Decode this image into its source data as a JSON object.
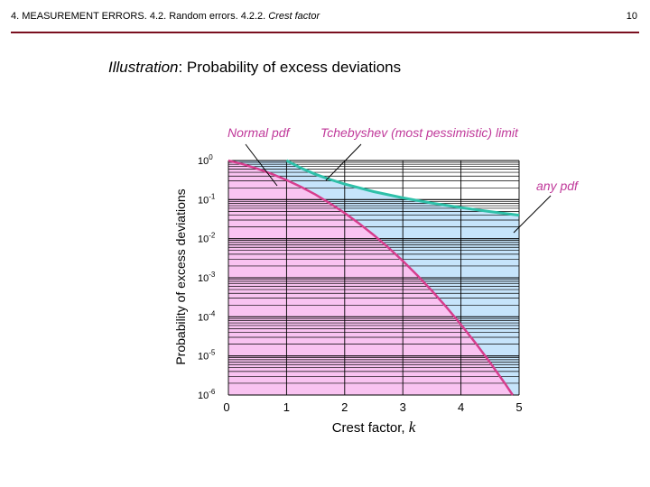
{
  "header": {
    "section": "4. MEASUREMENT ERRORS. 4.2. Random errors. 4.2.2.",
    "topic": "Crest factor",
    "page_number": "10"
  },
  "slide": {
    "title_italic": "Illustration",
    "title_rest": ":  Probability of excess deviations"
  },
  "colors": {
    "header_rule": "#7a0f1f",
    "pink_fill": "#f9c3f1",
    "blue_fill": "#c6e4fb",
    "normal_curve": "#d63e8e",
    "tchebyshev_curve": "#2fc0a9",
    "label_text": "#c0399a"
  },
  "chart_data": {
    "type": "line",
    "xlabel": "Crest factor, k",
    "xlabel_text": "Crest factor, ",
    "xlabel_var": "k",
    "ylabel": "Probability of excess deviations",
    "xlim": [
      0,
      5
    ],
    "ylim": [
      1e-06,
      1
    ],
    "y_scale": "log",
    "grid": true,
    "x_ticks": [
      "0",
      "1",
      "2",
      "3",
      "4",
      "5"
    ],
    "y_ticks": [
      {
        "base": "10",
        "exp": "0"
      },
      {
        "base": "10",
        "exp": "-1"
      },
      {
        "base": "10",
        "exp": "-2"
      },
      {
        "base": "10",
        "exp": "-3"
      },
      {
        "base": "10",
        "exp": "-4"
      },
      {
        "base": "10",
        "exp": "-5"
      },
      {
        "base": "10",
        "exp": "-6"
      }
    ],
    "series": [
      {
        "name": "Normal pdf",
        "x": [
          0,
          0.25,
          0.5,
          0.75,
          1.0,
          1.25,
          1.5,
          1.75,
          2.0,
          2.25,
          2.5,
          2.75,
          3.0,
          3.25,
          3.5,
          3.75,
          4.0,
          4.25,
          4.5,
          4.75,
          4.89
        ],
        "y": [
          1.0,
          0.803,
          0.617,
          0.453,
          0.317,
          0.211,
          0.134,
          0.0801,
          0.0455,
          0.0244,
          0.0124,
          0.00596,
          0.0027,
          0.00115,
          0.000465,
          0.000177,
          6.33e-05,
          2.14e-05,
          6.8e-06,
          2.04e-06,
          1e-06
        ]
      },
      {
        "name": "Tchebyshev (most pessimistic) limit",
        "x": [
          1.0,
          1.25,
          1.5,
          1.75,
          2.0,
          2.5,
          3.0,
          3.5,
          4.0,
          4.5,
          5.0
        ],
        "y": [
          1.0,
          0.64,
          0.444,
          0.327,
          0.25,
          0.16,
          0.111,
          0.0816,
          0.0625,
          0.0494,
          0.04
        ]
      }
    ],
    "annotations": [
      "Normal pdf",
      "Tchebyshev (most pessimistic) limit",
      "any pdf"
    ]
  }
}
